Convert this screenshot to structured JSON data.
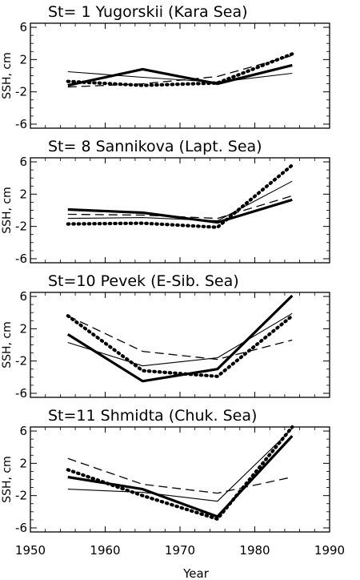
{
  "figure": {
    "xlabel": "Year",
    "x_tick_labels": [
      "1950",
      "1960",
      "1970",
      "1980",
      "1990"
    ]
  },
  "chart_data": [
    {
      "type": "line",
      "title_station": "St= 1",
      "title_name": "Yugorskii (Kara Sea)",
      "ylabel": "SSH, cm",
      "y_tick_labels": [
        "6",
        "2",
        "-2",
        "-6"
      ],
      "xlim": [
        1950,
        1990
      ],
      "ylim": [
        -6.5,
        6.5
      ],
      "x": [
        1955,
        1965,
        1975,
        1985
      ],
      "series": [
        {
          "style": "thick-solid",
          "values": [
            -1.2,
            0.8,
            -1.0,
            1.3
          ]
        },
        {
          "style": "thin-solid",
          "values": [
            0.5,
            -0.2,
            -0.8,
            0.3
          ]
        },
        {
          "style": "dashed",
          "values": [
            -1.4,
            -1.0,
            -0.1,
            2.5
          ]
        },
        {
          "style": "dotted",
          "values": [
            -0.7,
            -1.2,
            -0.9,
            2.7
          ]
        }
      ]
    },
    {
      "type": "line",
      "title_station": "St= 8",
      "title_name": "Sannikova (Lapt. Sea)",
      "ylabel": "SSH, cm",
      "y_tick_labels": [
        "6",
        "2",
        "-2",
        "-6"
      ],
      "xlim": [
        1950,
        1990
      ],
      "ylim": [
        -6.5,
        6.5
      ],
      "x": [
        1955,
        1965,
        1975,
        1985
      ],
      "series": [
        {
          "style": "thick-solid",
          "values": [
            0.1,
            -0.3,
            -1.5,
            1.3
          ]
        },
        {
          "style": "thin-solid",
          "values": [
            -1.0,
            -0.9,
            -1.3,
            3.6
          ]
        },
        {
          "style": "dashed",
          "values": [
            -0.5,
            -0.6,
            -1.0,
            1.8
          ]
        },
        {
          "style": "dotted",
          "values": [
            -1.7,
            -1.6,
            -2.1,
            5.6
          ]
        }
      ]
    },
    {
      "type": "line",
      "title_station": "St=10",
      "title_name": "Pevek (E-Sib. Sea)",
      "ylabel": "SSH, cm",
      "y_tick_labels": [
        "6",
        "2",
        "-2",
        "-6"
      ],
      "xlim": [
        1950,
        1990
      ],
      "ylim": [
        -6.5,
        6.5
      ],
      "x": [
        1955,
        1965,
        1975,
        1985
      ],
      "series": [
        {
          "style": "thick-solid",
          "values": [
            1.3,
            -4.5,
            -3.0,
            6.1
          ]
        },
        {
          "style": "thin-solid",
          "values": [
            0.3,
            -2.6,
            -1.6,
            3.9
          ]
        },
        {
          "style": "dashed",
          "values": [
            3.6,
            -0.8,
            -1.8,
            0.6
          ]
        },
        {
          "style": "dotted",
          "values": [
            3.6,
            -3.2,
            -3.9,
            3.6
          ]
        }
      ]
    },
    {
      "type": "line",
      "title_station": "St=11",
      "title_name": "Shmidta (Chuk. Sea)",
      "ylabel": "SSH, cm",
      "y_tick_labels": [
        "6",
        "2",
        "-2",
        "-6"
      ],
      "xlim": [
        1950,
        1990
      ],
      "ylim": [
        -6.5,
        6.5
      ],
      "x": [
        1955,
        1965,
        1975,
        1985
      ],
      "series": [
        {
          "style": "thick-solid",
          "values": [
            0.3,
            -1.2,
            -4.6,
            5.4
          ]
        },
        {
          "style": "thin-solid",
          "values": [
            -1.2,
            -1.6,
            -2.7,
            6.3
          ]
        },
        {
          "style": "dashed",
          "values": [
            2.6,
            -0.6,
            -1.7,
            0.3
          ]
        },
        {
          "style": "dotted",
          "values": [
            1.2,
            -2.0,
            -4.9,
            6.5
          ]
        }
      ]
    }
  ]
}
